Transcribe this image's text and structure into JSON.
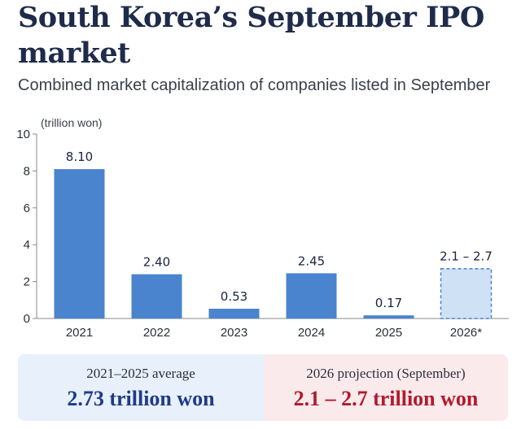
{
  "header": {
    "title": "South Korea’s September IPO market",
    "subtitle": "Combined market capitalization of companies listed in September"
  },
  "chart_data": {
    "type": "bar",
    "unit_label": "(trillion won)",
    "categories": [
      "2021",
      "2022",
      "2023",
      "2024",
      "2025",
      "2026*"
    ],
    "values": [
      8.1,
      2.4,
      0.53,
      2.45,
      0.17,
      2.7
    ],
    "value_labels": [
      "8.10",
      "2.40",
      "0.53",
      "2.45",
      "0.17",
      "2.1 – 2.7"
    ],
    "projection": {
      "category": "2026*",
      "low": 2.1,
      "high": 2.7
    },
    "yticks": [
      0,
      2,
      4,
      6,
      8,
      10
    ],
    "ylim": [
      0,
      10
    ],
    "grid": false,
    "colors": {
      "bar": "#4a84cf",
      "projection_fill": "#cfe1f5",
      "projection_stroke": "#4a84cf"
    }
  },
  "summary": {
    "average": {
      "label": "2021–2025 average",
      "value": "2.73 trillion won"
    },
    "projection": {
      "label": "2026 projection (September)",
      "value": "2.1 – 2.7 trillion won"
    }
  }
}
